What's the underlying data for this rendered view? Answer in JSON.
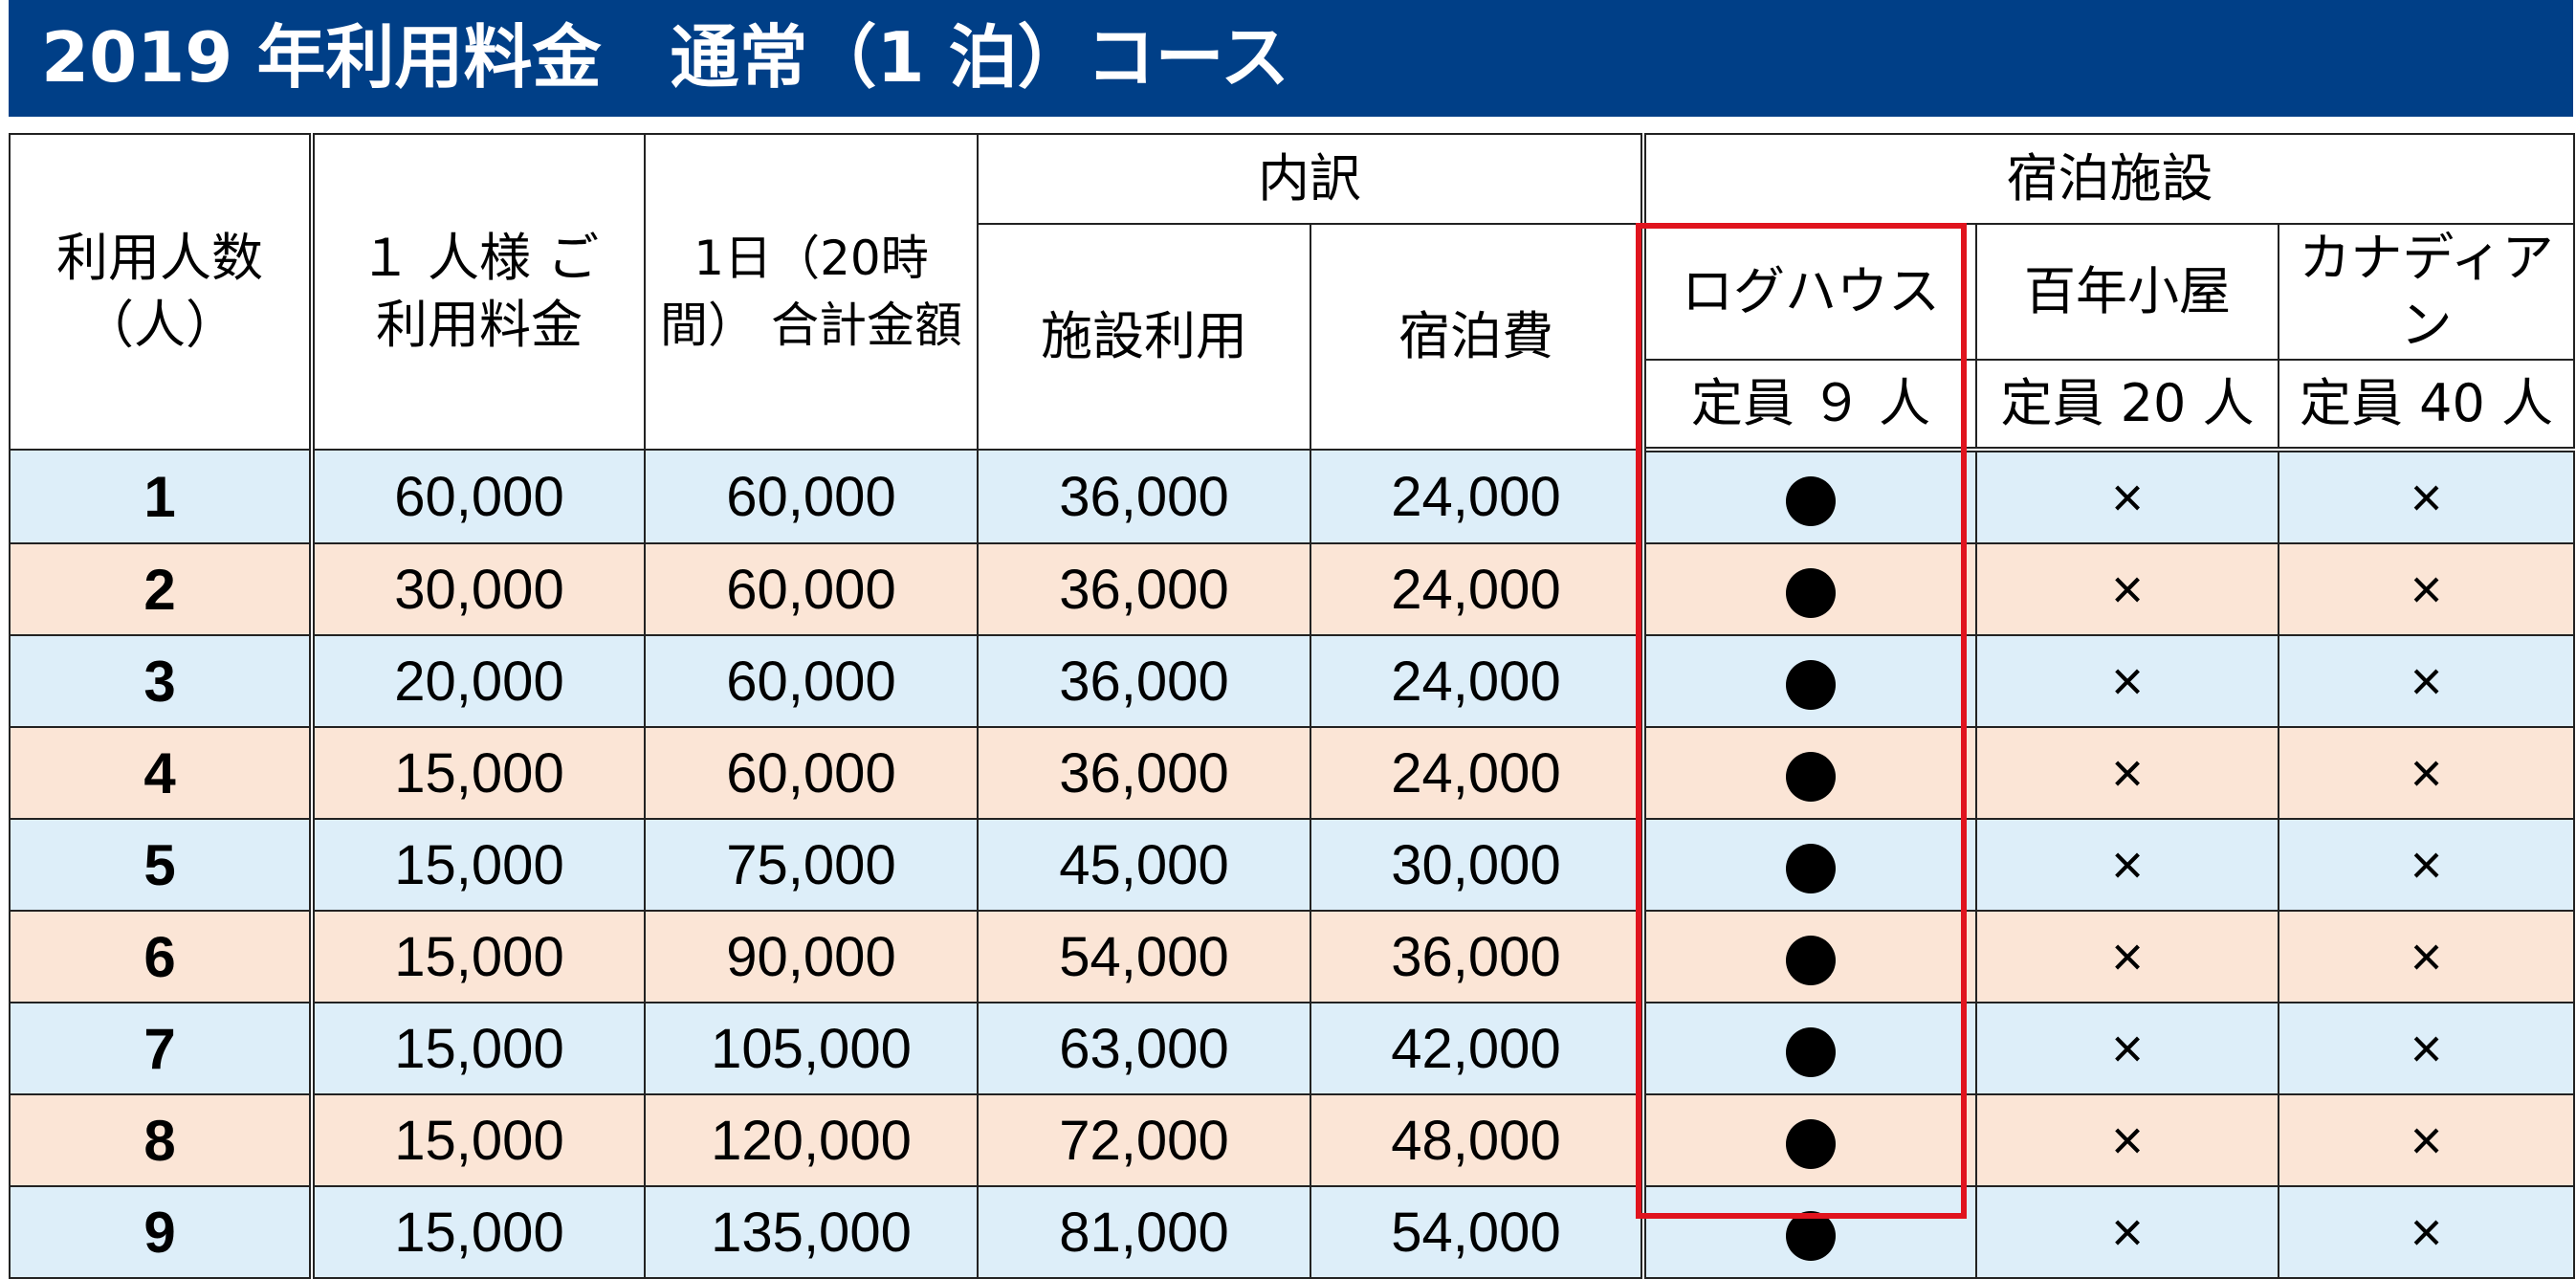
{
  "title": "2019 年利用料金　通常（1 泊）コース",
  "header": {
    "people": "利用人数（人）",
    "per_person": "１ 人様 ご利用料金",
    "daily_total": "1日（20時間） 合計金額",
    "breakdown": "内訳",
    "facility_use": "施設利用",
    "lodging_fee": "宿泊費",
    "accommodation": "宿泊施設",
    "log_house": "ログハウス",
    "log_house_capacity": "定員 ９ 人",
    "hyakunen_goya": "百年小屋",
    "hyakunen_goya_capacity": "定員 20 人",
    "canadian": "カナディアン",
    "canadian_capacity": "定員 40 人"
  },
  "rows": [
    {
      "people": "1",
      "per_person": "60,000",
      "total": "60,000",
      "facility": "36,000",
      "lodging": "24,000",
      "log_house": "●",
      "hyakunen": "×",
      "canadian": "×"
    },
    {
      "people": "2",
      "per_person": "30,000",
      "total": "60,000",
      "facility": "36,000",
      "lodging": "24,000",
      "log_house": "●",
      "hyakunen": "×",
      "canadian": "×"
    },
    {
      "people": "3",
      "per_person": "20,000",
      "total": "60,000",
      "facility": "36,000",
      "lodging": "24,000",
      "log_house": "●",
      "hyakunen": "×",
      "canadian": "×"
    },
    {
      "people": "4",
      "per_person": "15,000",
      "total": "60,000",
      "facility": "36,000",
      "lodging": "24,000",
      "log_house": "●",
      "hyakunen": "×",
      "canadian": "×"
    },
    {
      "people": "5",
      "per_person": "15,000",
      "total": "75,000",
      "facility": "45,000",
      "lodging": "30,000",
      "log_house": "●",
      "hyakunen": "×",
      "canadian": "×"
    },
    {
      "people": "6",
      "per_person": "15,000",
      "total": "90,000",
      "facility": "54,000",
      "lodging": "36,000",
      "log_house": "●",
      "hyakunen": "×",
      "canadian": "×"
    },
    {
      "people": "7",
      "per_person": "15,000",
      "total": "105,000",
      "facility": "63,000",
      "lodging": "42,000",
      "log_house": "●",
      "hyakunen": "×",
      "canadian": "×"
    },
    {
      "people": "8",
      "per_person": "15,000",
      "total": "120,000",
      "facility": "72,000",
      "lodging": "48,000",
      "log_house": "●",
      "hyakunen": "×",
      "canadian": "×"
    },
    {
      "people": "9",
      "per_person": "15,000",
      "total": "135,000",
      "facility": "81,000",
      "lodging": "54,000",
      "log_house": "●",
      "hyakunen": "×",
      "canadian": "×"
    }
  ],
  "colors": {
    "title_bg": "#003f87",
    "row_blue": "#ddeef9",
    "row_peach": "#fbe5d6",
    "highlight": "#e0141e"
  }
}
